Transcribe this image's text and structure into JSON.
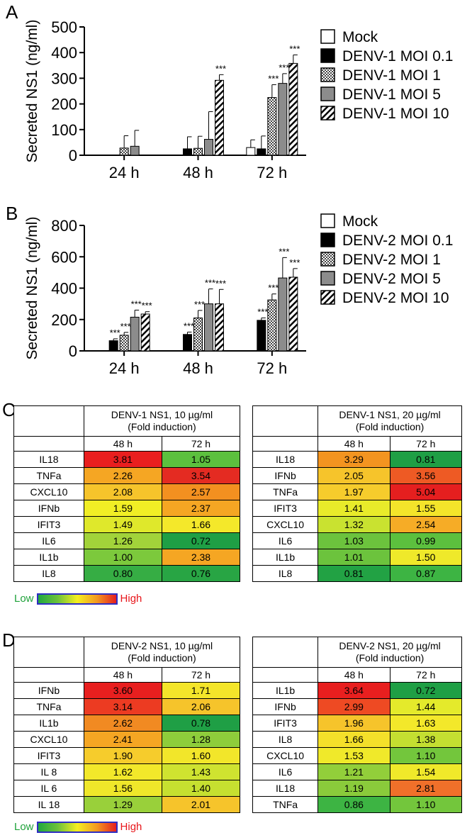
{
  "panels": {
    "a": "A",
    "b": "B",
    "c": "C",
    "d": "D"
  },
  "chart_data": [
    {
      "type": "bar",
      "ylabel": "Secreted NS1 (ng/ml)",
      "ylim": [
        0,
        500
      ],
      "yticks": [
        "0",
        "100",
        "200",
        "300",
        "400",
        "500"
      ],
      "categories": [
        "24 h",
        "48 h",
        "72 h"
      ],
      "series": [
        {
          "name": "Mock",
          "values": [
            0,
            0,
            30
          ],
          "errors": [
            0,
            0,
            30
          ],
          "sig": [
            "",
            "",
            ""
          ]
        },
        {
          "name": "DENV-1 MOI 0.1",
          "values": [
            0,
            25,
            25
          ],
          "errors": [
            0,
            47,
            50
          ],
          "sig": [
            "",
            "",
            ""
          ]
        },
        {
          "name": "DENV-1 MOI 1",
          "values": [
            28,
            27,
            225
          ],
          "errors": [
            48,
            47,
            50
          ],
          "sig": [
            "",
            "",
            "***"
          ]
        },
        {
          "name": "DENV-1 MOI 5",
          "values": [
            35,
            62,
            280
          ],
          "errors": [
            62,
            108,
            38
          ],
          "sig": [
            "",
            "",
            "***"
          ]
        },
        {
          "name": "DENV-1 MOI 10",
          "values": [
            0,
            292,
            358
          ],
          "errors": [
            0,
            22,
            33
          ],
          "sig": [
            "",
            "***",
            "***"
          ]
        }
      ],
      "legend": "top-right"
    },
    {
      "type": "bar",
      "ylabel": "Secreted NS1 (ng/ml)",
      "ylim": [
        0,
        800
      ],
      "yticks": [
        "0",
        "200",
        "400",
        "600",
        "800"
      ],
      "categories": [
        "24 h",
        "48 h",
        "72 h"
      ],
      "series": [
        {
          "name": "Mock",
          "values": [
            0,
            0,
            0
          ],
          "errors": [
            0,
            0,
            0
          ],
          "sig": [
            "",
            "",
            ""
          ]
        },
        {
          "name": "DENV-2 MOI 0.1",
          "values": [
            65,
            105,
            195
          ],
          "errors": [
            12,
            15,
            15
          ],
          "sig": [
            "***",
            "***",
            "***"
          ]
        },
        {
          "name": "DENV-2 MOI 1",
          "values": [
            100,
            210,
            325
          ],
          "errors": [
            18,
            48,
            38
          ],
          "sig": [
            "***",
            "***",
            "***"
          ]
        },
        {
          "name": "DENV-2 MOI 5",
          "values": [
            215,
            300,
            465
          ],
          "errors": [
            45,
            95,
            130
          ],
          "sig": [
            "***",
            "***",
            "***"
          ]
        },
        {
          "name": "DENV-2 MOI 10",
          "values": [
            235,
            300,
            470
          ],
          "errors": [
            15,
            92,
            55
          ],
          "sig": [
            "***",
            "***",
            "***"
          ]
        }
      ],
      "legend": "top-right"
    }
  ],
  "heatmaps": {
    "c1": {
      "title1": "DENV-1 NS1, 10 µg/ml",
      "title2": "(Fold induction)",
      "cols": [
        "48 h",
        "72 h"
      ],
      "rows": [
        {
          "gene": "IL18",
          "v": [
            "3.81",
            "1.05"
          ],
          "c": [
            "#e91f1f",
            "#5cc03e"
          ]
        },
        {
          "gene": "TNFa",
          "v": [
            "2.26",
            "3.54"
          ],
          "c": [
            "#f5a623",
            "#e42b22"
          ]
        },
        {
          "gene": "CXCL10",
          "v": [
            "2.08",
            "2.57"
          ],
          "c": [
            "#f6c42b",
            "#f39020"
          ]
        },
        {
          "gene": "IFNb",
          "v": [
            "1.59",
            "2.37"
          ],
          "c": [
            "#f1ee25",
            "#f5a623"
          ]
        },
        {
          "gene": "IFIT3",
          "v": [
            "1.49",
            "1.66"
          ],
          "c": [
            "#dfe82b",
            "#f4e82a"
          ]
        },
        {
          "gene": "IL6",
          "v": [
            "1.26",
            "0.72"
          ],
          "c": [
            "#a2d33a",
            "#1f9f45"
          ]
        },
        {
          "gene": "IL1b",
          "v": [
            "1.00",
            "2.38"
          ],
          "c": [
            "#7cc93c",
            "#f5a623"
          ]
        },
        {
          "gene": "IL8",
          "v": [
            "0.80",
            "0.76"
          ],
          "c": [
            "#36ad44",
            "#28a544"
          ]
        }
      ]
    },
    "c2": {
      "title1": "DENV-1 NS1, 20 µg/ml",
      "title2": "(Fold induction)",
      "cols": [
        "48 h",
        "72 h"
      ],
      "rows": [
        {
          "gene": "IL18",
          "v": [
            "3.29",
            "0.81"
          ],
          "c": [
            "#f39420",
            "#1f9f45"
          ]
        },
        {
          "gene": "IFNb",
          "v": [
            "2.05",
            "3.56"
          ],
          "c": [
            "#f6c42b",
            "#ee5a24"
          ]
        },
        {
          "gene": "TNFa",
          "v": [
            "1.97",
            "5.04"
          ],
          "c": [
            "#f6cc2c",
            "#e51f1f"
          ]
        },
        {
          "gene": "IFIT3",
          "v": [
            "1.41",
            "1.55"
          ],
          "c": [
            "#e8eb2a",
            "#f4e42a"
          ]
        },
        {
          "gene": "CXCL10",
          "v": [
            "1.32",
            "2.54"
          ],
          "c": [
            "#c9e230",
            "#f6ac26"
          ]
        },
        {
          "gene": "IL6",
          "v": [
            "1.03",
            "0.99"
          ],
          "c": [
            "#6cc33d",
            "#5cc03e"
          ]
        },
        {
          "gene": "IL1b",
          "v": [
            "1.01",
            "1.50"
          ],
          "c": [
            "#6cc33d",
            "#efe92a"
          ]
        },
        {
          "gene": "IL8",
          "v": [
            "0.81",
            "0.87"
          ],
          "c": [
            "#22a244",
            "#3db443"
          ]
        }
      ]
    },
    "d1": {
      "title1": "DENV-2 NS1, 10 µg/ml",
      "title2": "(Fold induction)",
      "cols": [
        "48 h",
        "72 h"
      ],
      "rows": [
        {
          "gene": "IFNb",
          "v": [
            "3.60",
            "1.71"
          ],
          "c": [
            "#e81f1f",
            "#f4e52a"
          ]
        },
        {
          "gene": "TNFa",
          "v": [
            "3.14",
            "2.06"
          ],
          "c": [
            "#ec3b22",
            "#f6c42b"
          ]
        },
        {
          "gene": "IL1b",
          "v": [
            "2.62",
            "0.78"
          ],
          "c": [
            "#f18a22",
            "#1f9f45"
          ]
        },
        {
          "gene": "CXCL10",
          "v": [
            "2.41",
            "1.28"
          ],
          "c": [
            "#f5a623",
            "#8ecd3b"
          ]
        },
        {
          "gene": "IFIT3",
          "v": [
            "1.90",
            "1.60"
          ],
          "c": [
            "#f6cc2c",
            "#f2e62a"
          ]
        },
        {
          "gene": "IL 8",
          "v": [
            "1.62",
            "1.43"
          ],
          "c": [
            "#f2e82a",
            "#cfe330"
          ]
        },
        {
          "gene": "IL 6",
          "v": [
            "1.56",
            "1.40"
          ],
          "c": [
            "#efe72a",
            "#c6e030"
          ]
        },
        {
          "gene": "IL 18",
          "v": [
            "1.29",
            "2.01"
          ],
          "c": [
            "#99d03a",
            "#f6c42b"
          ]
        }
      ]
    },
    "d2": {
      "title1": "DENV-2 NS1, 20 µg/ml",
      "title2": "(Fold induction)",
      "cols": [
        "48 h",
        "72 h"
      ],
      "rows": [
        {
          "gene": "IL1b",
          "v": [
            "3.64",
            "0.72"
          ],
          "c": [
            "#e81f1f",
            "#1f9f45"
          ]
        },
        {
          "gene": "IFNb",
          "v": [
            "2.99",
            "1.44"
          ],
          "c": [
            "#ee4a23",
            "#e4ea2b"
          ]
        },
        {
          "gene": "IFIT3",
          "v": [
            "1.96",
            "1.63"
          ],
          "c": [
            "#f6c42b",
            "#f3e82a"
          ]
        },
        {
          "gene": "IL8",
          "v": [
            "1.66",
            "1.38"
          ],
          "c": [
            "#f4e02a",
            "#c4df31"
          ]
        },
        {
          "gene": "CXCL10",
          "v": [
            "1.53",
            "1.10"
          ],
          "c": [
            "#f0e92a",
            "#73c63c"
          ]
        },
        {
          "gene": "IL6",
          "v": [
            "1.21",
            "1.54"
          ],
          "c": [
            "#92cf3a",
            "#f0e92a"
          ]
        },
        {
          "gene": "IL18",
          "v": [
            "1.19",
            "2.81"
          ],
          "c": [
            "#8acb3b",
            "#f0702a"
          ]
        },
        {
          "gene": "TNFa",
          "v": [
            "0.86",
            "1.10"
          ],
          "c": [
            "#3db443",
            "#73c63c"
          ]
        }
      ]
    }
  },
  "legend_scale": {
    "low": "Low",
    "high": "High"
  }
}
